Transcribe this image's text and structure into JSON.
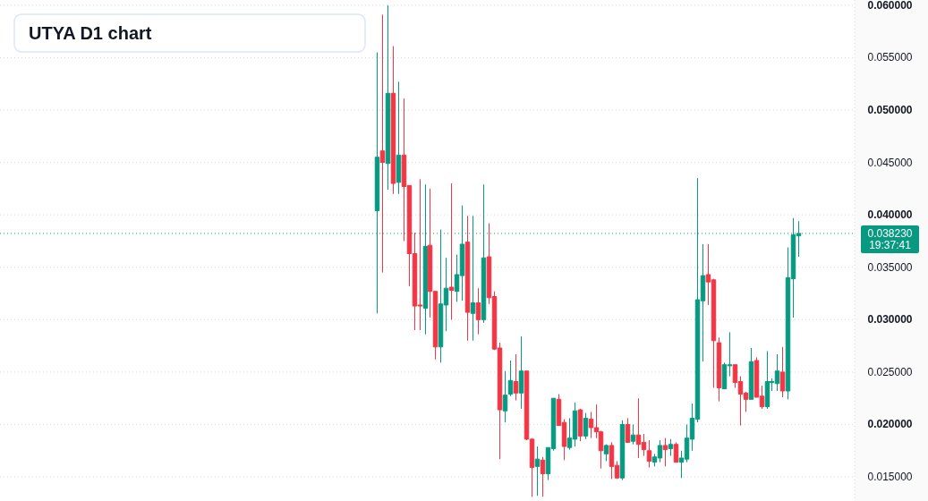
{
  "chart_data": {
    "type": "candlestick",
    "title": "UTYA D1 chart",
    "categories": [
      null,
      null,
      null,
      null,
      null,
      null,
      null,
      null,
      null,
      null,
      null,
      null,
      null,
      null,
      null,
      null,
      null,
      null,
      null,
      null,
      null,
      null,
      null,
      null,
      null,
      null,
      null,
      null,
      null,
      null,
      null,
      null,
      null,
      null,
      null,
      null,
      null,
      null,
      null,
      null,
      null,
      null,
      null,
      null,
      null,
      null,
      null,
      null,
      null,
      null,
      null,
      null,
      null,
      null,
      null,
      null,
      null,
      null,
      null,
      null,
      null,
      null,
      null,
      null,
      null,
      null,
      null,
      null,
      null,
      null,
      null,
      null,
      null,
      null,
      null,
      null,
      null,
      null,
      null,
      null,
      null,
      null,
      null,
      null,
      null,
      null,
      null,
      null,
      null,
      null,
      null,
      null,
      null,
      null,
      null,
      null,
      null,
      null,
      null,
      null,
      null,
      null,
      null,
      null,
      null,
      null,
      null,
      null,
      null,
      null,
      null,
      null,
      null,
      null,
      null,
      null,
      null,
      null,
      null,
      null,
      null,
      null,
      null,
      null,
      null,
      null,
      null,
      null,
      null,
      null,
      null,
      null,
      null,
      null,
      null,
      null,
      null,
      null,
      null,
      null,
      null,
      null,
      null,
      null,
      null,
      null,
      null,
      null,
      null,
      null,
      null,
      null,
      null,
      null,
      null,
      null,
      null,
      null,
      null,
      null
    ],
    "ohlc": [
      null,
      null,
      null,
      null,
      null,
      null,
      null,
      null,
      null,
      null,
      null,
      null,
      null,
      null,
      null,
      null,
      null,
      null,
      null,
      null,
      null,
      null,
      null,
      null,
      null,
      null,
      null,
      null,
      null,
      null,
      null,
      null,
      null,
      null,
      null,
      null,
      null,
      null,
      null,
      null,
      null,
      null,
      null,
      null,
      null,
      null,
      null,
      null,
      null,
      null,
      null,
      null,
      null,
      null,
      null,
      null,
      null,
      null,
      null,
      null,
      null,
      null,
      null,
      null,
      null,
      null,
      null,
      null,
      null,
      null,
      [
        0.0404,
        0.0555,
        0.0306,
        0.0455
      ],
      [
        0.0461,
        0.0591,
        0.0345,
        0.045
      ],
      [
        0.0449,
        0.06,
        0.0424,
        0.0516
      ],
      [
        0.0516,
        0.0561,
        0.042,
        0.043
      ],
      [
        0.0431,
        0.0527,
        0.042,
        0.0457
      ],
      [
        0.0457,
        0.0511,
        0.0375,
        0.0427
      ],
      [
        0.0428,
        0.0428,
        0.0332,
        0.0363
      ],
      [
        0.0363,
        0.0383,
        0.029,
        0.0313
      ],
      [
        0.0314,
        0.0434,
        0.029,
        0.0313
      ],
      [
        0.0311,
        0.0429,
        0.0286,
        0.037
      ],
      [
        0.0371,
        0.0425,
        0.0302,
        0.0327
      ],
      [
        0.0327,
        0.0327,
        0.0262,
        0.0274
      ],
      [
        0.0274,
        0.0386,
        0.0259,
        0.0315
      ],
      [
        0.0314,
        0.0359,
        0.0289,
        0.033
      ],
      [
        0.0331,
        0.043,
        0.03,
        0.0328
      ],
      [
        0.0327,
        0.0362,
        0.0317,
        0.0343
      ],
      [
        0.0342,
        0.0409,
        0.0318,
        0.0372
      ],
      [
        0.0374,
        0.0399,
        0.028,
        0.0307
      ],
      [
        0.0306,
        0.0399,
        0.028,
        0.0316
      ],
      [
        0.0316,
        0.033,
        0.0286,
        0.03
      ],
      [
        0.03,
        0.0429,
        0.0297,
        0.0359
      ],
      [
        0.036,
        0.0392,
        0.0315,
        0.0321
      ],
      [
        0.0322,
        0.0327,
        0.0271,
        0.0272
      ],
      [
        0.0273,
        0.0278,
        0.0167,
        0.0214
      ],
      [
        0.0213,
        0.0251,
        0.0202,
        0.0228
      ],
      [
        0.0229,
        0.0261,
        0.0227,
        0.0242
      ],
      [
        0.0241,
        0.0267,
        0.0223,
        0.023
      ],
      [
        0.023,
        0.0284,
        0.0215,
        0.0251
      ],
      [
        0.0251,
        0.0251,
        0.0185,
        0.0186
      ],
      [
        0.0186,
        0.0187,
        0.0131,
        0.0159
      ],
      [
        0.016,
        0.0179,
        0.0132,
        0.0167
      ],
      [
        0.0166,
        0.0169,
        0.0131,
        0.0153
      ],
      [
        0.0153,
        0.0178,
        0.0147,
        0.0178
      ],
      [
        0.0177,
        0.0225,
        0.0175,
        0.0225
      ],
      [
        0.0224,
        0.0229,
        0.0199,
        0.0199
      ],
      [
        0.0202,
        0.0205,
        0.0166,
        0.0179
      ],
      [
        0.0178,
        0.0206,
        0.0176,
        0.0187
      ],
      [
        0.0186,
        0.0221,
        0.0179,
        0.0213
      ],
      [
        0.0214,
        0.0215,
        0.0184,
        0.0189
      ],
      [
        0.0189,
        0.0211,
        0.0186,
        0.0206
      ],
      [
        0.0205,
        0.0212,
        0.0187,
        0.0197
      ],
      [
        0.0197,
        0.0219,
        0.0187,
        0.0193
      ],
      [
        0.0193,
        0.0194,
        0.0158,
        0.0175
      ],
      [
        0.0172,
        0.0181,
        0.0165,
        0.018
      ],
      [
        0.018,
        0.0183,
        0.0148,
        0.016
      ],
      [
        0.0161,
        0.0165,
        0.0148,
        0.0149
      ],
      [
        0.0149,
        0.0204,
        0.0147,
        0.02
      ],
      [
        0.02,
        0.0206,
        0.0183,
        0.0183
      ],
      [
        0.0184,
        0.02,
        0.0181,
        0.019
      ],
      [
        0.019,
        0.0225,
        0.0168,
        0.0181
      ],
      [
        0.0183,
        0.0191,
        0.017,
        0.0176
      ],
      [
        0.0175,
        0.0185,
        0.0159,
        0.0165
      ],
      [
        0.0164,
        0.0172,
        0.016,
        0.0169
      ],
      [
        0.0168,
        0.0185,
        0.0164,
        0.018
      ],
      [
        0.018,
        0.0187,
        0.016,
        0.0176
      ],
      [
        0.0177,
        0.0186,
        0.017,
        0.0181
      ],
      [
        0.0181,
        0.0183,
        0.0164,
        0.0164
      ],
      [
        0.0164,
        0.0175,
        0.0149,
        0.0168
      ],
      [
        0.0167,
        0.02,
        0.0164,
        0.0187
      ],
      [
        0.0186,
        0.022,
        0.0175,
        0.0206
      ],
      [
        0.0205,
        0.0435,
        0.0202,
        0.0319
      ],
      [
        0.0318,
        0.0372,
        0.026,
        0.0342
      ],
      [
        0.0343,
        0.0372,
        0.0314,
        0.0336
      ],
      [
        0.0338,
        0.0339,
        0.0235,
        0.028
      ],
      [
        0.0278,
        0.0283,
        0.0222,
        0.0235
      ],
      [
        0.0234,
        0.0259,
        0.0234,
        0.0257
      ],
      [
        0.0256,
        0.0288,
        0.0246,
        0.0257
      ],
      [
        0.0257,
        0.0257,
        0.0235,
        0.024
      ],
      [
        0.0241,
        0.0246,
        0.0199,
        0.0229
      ],
      [
        0.023,
        0.0231,
        0.0212,
        0.0224
      ],
      [
        0.0224,
        0.0273,
        0.0224,
        0.026
      ],
      [
        0.0261,
        0.0264,
        0.0226,
        0.0226
      ],
      [
        0.0227,
        0.0237,
        0.0215,
        0.0217
      ],
      [
        0.0217,
        0.027,
        0.0215,
        0.0241
      ],
      [
        0.024,
        0.0244,
        0.0232,
        0.0241
      ],
      [
        0.0239,
        0.0267,
        0.0232,
        0.0251
      ],
      [
        0.025,
        0.0274,
        0.0226,
        0.0232
      ],
      [
        0.0232,
        0.0369,
        0.0224,
        0.034
      ],
      [
        0.0339,
        0.0397,
        0.0302,
        0.0381
      ],
      [
        0.038,
        0.0394,
        0.036,
        0.03823
      ],
      null,
      null,
      null,
      null,
      null,
      null,
      null,
      null,
      null,
      null
    ],
    "ylim": [
      0.0127,
      0.0605
    ],
    "yticks": [
      {
        "value": 0.015,
        "label": "0.015000"
      },
      {
        "value": 0.02,
        "label": "0.020000"
      },
      {
        "value": 0.025,
        "label": "0.025000"
      },
      {
        "value": 0.03,
        "label": "0.030000"
      },
      {
        "value": 0.035,
        "label": "0.035000"
      },
      {
        "value": 0.04,
        "label": "0.040000"
      },
      {
        "value": 0.045,
        "label": "0.045000"
      },
      {
        "value": 0.05,
        "label": "0.050000"
      },
      {
        "value": 0.055,
        "label": "0.055000"
      },
      {
        "value": 0.06,
        "label": "0.060000"
      }
    ],
    "grid": "y",
    "ref_lines": [
      {
        "axis": "y",
        "value": 0.03823,
        "label": "0.038230\n19:37:41",
        "color": "#089981",
        "line_style": "dotted"
      }
    ]
  }
}
